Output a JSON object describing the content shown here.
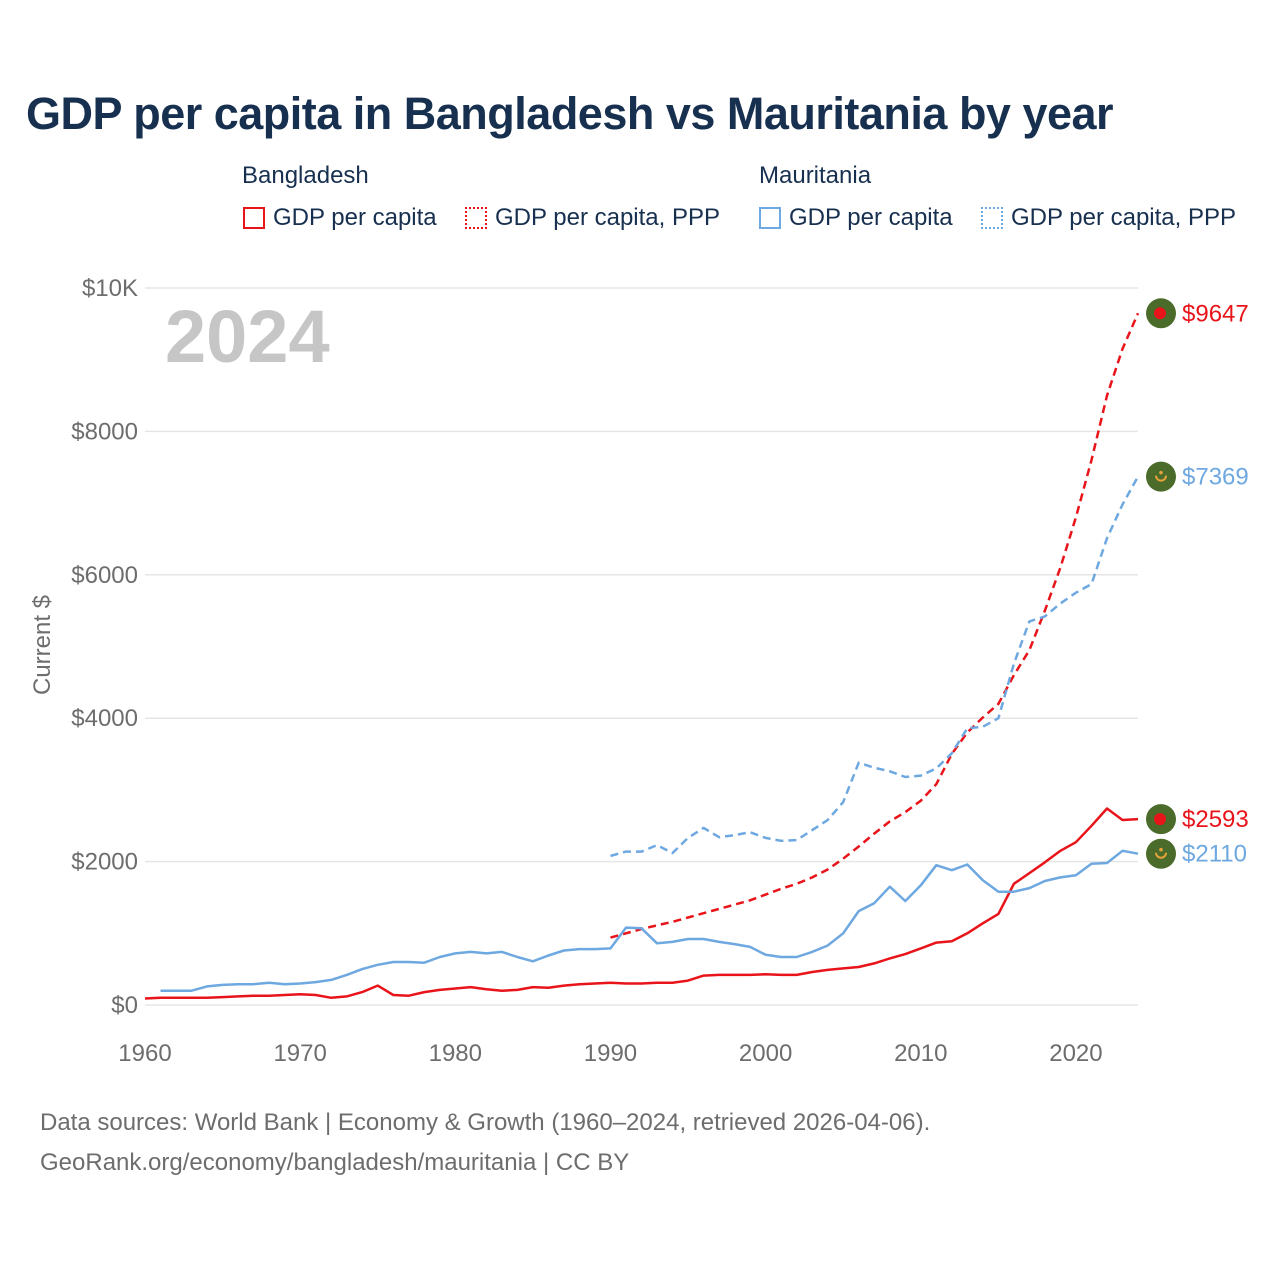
{
  "chart_data": {
    "type": "line",
    "title": "GDP per capita in Bangladesh vs Mauritania by year",
    "year_label": "2024",
    "ylabel": "Current $",
    "xlabel": "",
    "xlim": [
      1960,
      2024
    ],
    "ylim": [
      0,
      10000
    ],
    "x_ticks": [
      "1960",
      "1970",
      "1980",
      "1990",
      "2000",
      "2010",
      "2020"
    ],
    "x_tick_values": [
      1960,
      1970,
      1980,
      1990,
      2000,
      2010,
      2020
    ],
    "y_ticks": [
      "$0",
      "$2000",
      "$4000",
      "$6000",
      "$8000",
      "$10K"
    ],
    "y_tick_values": [
      0,
      2000,
      4000,
      6000,
      8000,
      10000
    ],
    "legend": {
      "groups": [
        {
          "name": "Bangladesh",
          "items": [
            "GDP per capita",
            "GDP per capita, PPP"
          ]
        },
        {
          "name": "Mauritania",
          "items": [
            "GDP per capita",
            "GDP per capita, PPP"
          ]
        }
      ]
    },
    "colors": {
      "bangladesh": "#e8141a",
      "mauritania": "#6ea8e0",
      "marker_bg": "#4a6b2a"
    },
    "series": [
      {
        "name": "Bangladesh GDP per capita",
        "country": "Bangladesh",
        "style": "solid",
        "end_label": "$2593",
        "x": [
          1960,
          1961,
          1962,
          1963,
          1964,
          1965,
          1966,
          1967,
          1968,
          1969,
          1970,
          1971,
          1972,
          1973,
          1974,
          1975,
          1976,
          1977,
          1978,
          1979,
          1980,
          1981,
          1982,
          1983,
          1984,
          1985,
          1986,
          1987,
          1988,
          1989,
          1990,
          1991,
          1992,
          1993,
          1994,
          1995,
          1996,
          1997,
          1998,
          1999,
          2000,
          2001,
          2002,
          2003,
          2004,
          2005,
          2006,
          2007,
          2008,
          2009,
          2010,
          2011,
          2012,
          2013,
          2014,
          2015,
          2016,
          2017,
          2018,
          2019,
          2020,
          2021,
          2022,
          2023,
          2024
        ],
        "values": [
          90,
          100,
          100,
          100,
          100,
          110,
          120,
          130,
          130,
          140,
          150,
          140,
          100,
          120,
          180,
          270,
          140,
          130,
          180,
          210,
          230,
          250,
          220,
          200,
          210,
          250,
          240,
          270,
          290,
          300,
          310,
          300,
          300,
          310,
          310,
          340,
          410,
          420,
          420,
          420,
          430,
          420,
          420,
          460,
          490,
          510,
          530,
          580,
          650,
          710,
          790,
          870,
          890,
          1000,
          1140,
          1270,
          1690,
          1840,
          1990,
          2150,
          2270,
          2500,
          2740,
          2580,
          2593
        ]
      },
      {
        "name": "Bangladesh GDP per capita, PPP",
        "country": "Bangladesh",
        "style": "dashed",
        "end_label": "$9647",
        "x": [
          1990,
          1991,
          1992,
          1993,
          1994,
          1995,
          1996,
          1997,
          1998,
          1999,
          2000,
          2001,
          2002,
          2003,
          2004,
          2005,
          2006,
          2007,
          2008,
          2009,
          2010,
          2011,
          2012,
          2013,
          2014,
          2015,
          2016,
          2017,
          2018,
          2019,
          2020,
          2021,
          2022,
          2023,
          2024
        ],
        "values": [
          940,
          1000,
          1060,
          1110,
          1160,
          1220,
          1280,
          1340,
          1400,
          1460,
          1540,
          1620,
          1690,
          1780,
          1890,
          2040,
          2210,
          2390,
          2560,
          2690,
          2850,
          3080,
          3500,
          3800,
          4010,
          4200,
          4600,
          4950,
          5500,
          6100,
          6800,
          7600,
          8500,
          9150,
          9647
        ]
      },
      {
        "name": "Mauritania GDP per capita",
        "country": "Mauritania",
        "style": "solid",
        "end_label": "$2110",
        "x": [
          1961,
          1962,
          1963,
          1964,
          1965,
          1966,
          1967,
          1968,
          1969,
          1970,
          1971,
          1972,
          1973,
          1974,
          1975,
          1976,
          1977,
          1978,
          1979,
          1980,
          1981,
          1982,
          1983,
          1984,
          1985,
          1986,
          1987,
          1988,
          1989,
          1990,
          1991,
          1992,
          1993,
          1994,
          1995,
          1996,
          1997,
          1998,
          1999,
          2000,
          2001,
          2002,
          2003,
          2004,
          2005,
          2006,
          2007,
          2008,
          2009,
          2010,
          2011,
          2012,
          2013,
          2014,
          2015,
          2016,
          2017,
          2018,
          2019,
          2020,
          2021,
          2022,
          2023,
          2024
        ],
        "values": [
          200,
          200,
          200,
          260,
          280,
          290,
          290,
          310,
          290,
          300,
          320,
          350,
          420,
          500,
          560,
          600,
          600,
          590,
          670,
          720,
          740,
          720,
          740,
          670,
          610,
          690,
          760,
          780,
          780,
          790,
          1080,
          1070,
          860,
          880,
          920,
          920,
          880,
          850,
          810,
          700,
          670,
          670,
          740,
          830,
          1000,
          1310,
          1420,
          1650,
          1450,
          1670,
          1950,
          1880,
          1960,
          1740,
          1580,
          1580,
          1630,
          1730,
          1780,
          1810,
          1970,
          1980,
          2150,
          2110
        ]
      },
      {
        "name": "Mauritania GDP per capita, PPP",
        "country": "Mauritania",
        "style": "dashed",
        "end_label": "$7369",
        "x": [
          1990,
          1991,
          1992,
          1993,
          1994,
          1995,
          1996,
          1997,
          1998,
          1999,
          2000,
          2001,
          2002,
          2003,
          2004,
          2005,
          2006,
          2007,
          2008,
          2009,
          2010,
          2011,
          2012,
          2013,
          2014,
          2015,
          2016,
          2017,
          2018,
          2019,
          2020,
          2021,
          2022,
          2023,
          2024
        ],
        "values": [
          2080,
          2140,
          2140,
          2230,
          2120,
          2330,
          2470,
          2340,
          2370,
          2410,
          2330,
          2290,
          2300,
          2440,
          2580,
          2830,
          3380,
          3310,
          3260,
          3180,
          3200,
          3300,
          3510,
          3860,
          3880,
          4000,
          4760,
          5350,
          5420,
          5600,
          5750,
          5870,
          6510,
          6980,
          7369
        ]
      }
    ]
  },
  "footer": {
    "line1": "Data sources: World Bank | Economy & Growth (1960–2024, retrieved 2026-04-06).",
    "line2": "GeoRank.org/economy/bangladesh/mauritania | CC BY"
  }
}
